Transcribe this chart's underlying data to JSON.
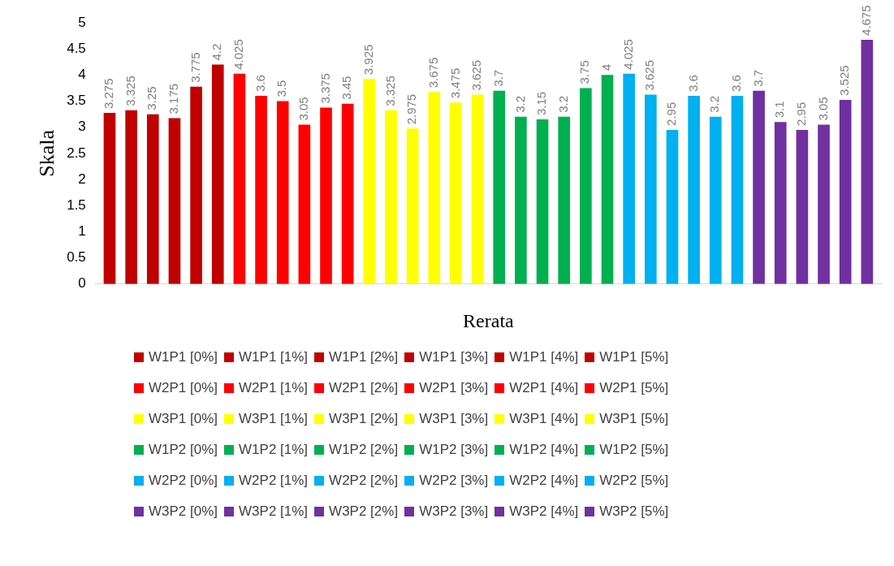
{
  "chart_data": {
    "type": "bar",
    "categories": [
      null
    ],
    "xlabel": "Rerata",
    "ylabel": "Skala",
    "ylim": [
      0,
      5
    ],
    "yticks": [
      0,
      0.5,
      1,
      1.5,
      2,
      2.5,
      3,
      3.5,
      4,
      4.5,
      5
    ],
    "grid": false,
    "legend": "bottom",
    "data_labels": true,
    "series": [
      {
        "name": "W1P1 [0%]",
        "color": "#c00000",
        "values": [
          3.275
        ]
      },
      {
        "name": "W1P1 [1%]",
        "color": "#c00000",
        "values": [
          3.325
        ]
      },
      {
        "name": "W1P1 [2%]",
        "color": "#c00000",
        "values": [
          3.25
        ]
      },
      {
        "name": "W1P1 [3%]",
        "color": "#c00000",
        "values": [
          3.175
        ]
      },
      {
        "name": "W1P1 [4%]",
        "color": "#c00000",
        "values": [
          3.775
        ]
      },
      {
        "name": "W1P1 [5%]",
        "color": "#c00000",
        "values": [
          4.2
        ]
      },
      {
        "name": "W2P1 [0%]",
        "color": "#ff0000",
        "values": [
          4.025
        ]
      },
      {
        "name": "W2P1 [1%]",
        "color": "#ff0000",
        "values": [
          3.6
        ]
      },
      {
        "name": "W2P1 [2%]",
        "color": "#ff0000",
        "values": [
          3.5
        ]
      },
      {
        "name": "W2P1 [3%]",
        "color": "#ff0000",
        "values": [
          3.05
        ]
      },
      {
        "name": "W2P1 [4%]",
        "color": "#ff0000",
        "values": [
          3.375
        ]
      },
      {
        "name": "W2P1 [5%]",
        "color": "#ff0000",
        "values": [
          3.45
        ]
      },
      {
        "name": "W3P1 [0%]",
        "color": "#ffff00",
        "values": [
          3.925
        ]
      },
      {
        "name": "W3P1 [1%]",
        "color": "#ffff00",
        "values": [
          3.325
        ]
      },
      {
        "name": "W3P1 [2%]",
        "color": "#ffff00",
        "values": [
          2.975
        ]
      },
      {
        "name": "W3P1 [3%]",
        "color": "#ffff00",
        "values": [
          3.675
        ]
      },
      {
        "name": "W3P1 [4%]",
        "color": "#ffff00",
        "values": [
          3.475
        ]
      },
      {
        "name": "W3P1 [5%]",
        "color": "#ffff00",
        "values": [
          3.625
        ]
      },
      {
        "name": "W1P2 [0%]",
        "color": "#00b050",
        "values": [
          3.7
        ]
      },
      {
        "name": "W1P2 [1%]",
        "color": "#00b050",
        "values": [
          3.2
        ]
      },
      {
        "name": "W1P2 [2%]",
        "color": "#00b050",
        "values": [
          3.15
        ]
      },
      {
        "name": "W1P2 [3%]",
        "color": "#00b050",
        "values": [
          3.2
        ]
      },
      {
        "name": "W1P2 [4%]",
        "color": "#00b050",
        "values": [
          3.75
        ]
      },
      {
        "name": "W1P2 [5%]",
        "color": "#00b050",
        "values": [
          4
        ]
      },
      {
        "name": "W2P2 [0%]",
        "color": "#00b0f0",
        "values": [
          4.025
        ]
      },
      {
        "name": "W2P2 [1%]",
        "color": "#00b0f0",
        "values": [
          3.625
        ]
      },
      {
        "name": "W2P2 [2%]",
        "color": "#00b0f0",
        "values": [
          2.95
        ]
      },
      {
        "name": "W2P2 [3%]",
        "color": "#00b0f0",
        "values": [
          3.6
        ]
      },
      {
        "name": "W2P2 [4%]",
        "color": "#00b0f0",
        "values": [
          3.2
        ]
      },
      {
        "name": "W2P2 [5%]",
        "color": "#00b0f0",
        "values": [
          3.6
        ]
      },
      {
        "name": "W3P2 [0%]",
        "color": "#7030a0",
        "values": [
          3.7
        ]
      },
      {
        "name": "W3P2 [1%]",
        "color": "#7030a0",
        "values": [
          3.1
        ]
      },
      {
        "name": "W3P2 [2%]",
        "color": "#7030a0",
        "values": [
          2.95
        ]
      },
      {
        "name": "W3P2 [3%]",
        "color": "#7030a0",
        "values": [
          3.05
        ]
      },
      {
        "name": "W3P2 [4%]",
        "color": "#7030a0",
        "values": [
          3.525
        ]
      },
      {
        "name": "W3P2 [5%]",
        "color": "#7030a0",
        "values": [
          4.675
        ]
      }
    ]
  }
}
